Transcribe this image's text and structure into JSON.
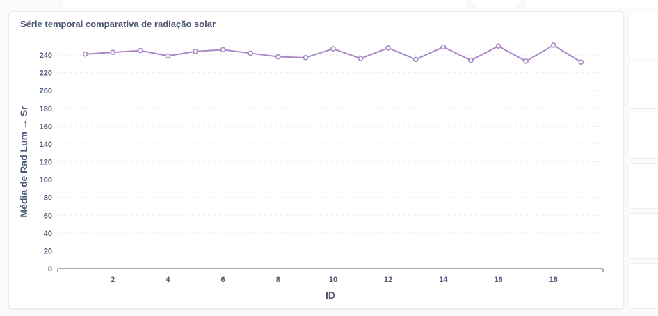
{
  "card": {
    "title": "Série temporal comparativa de radiação solar"
  },
  "colors": {
    "series": "#a989c5",
    "grid": "#eceff2",
    "axis": "#4c5773",
    "text": "#4c5773"
  },
  "chart_data": {
    "type": "line",
    "title": "Série temporal comparativa de radiação solar",
    "xlabel": "ID",
    "ylabel": "Média de Rad Lum → Sr",
    "x": [
      1,
      2,
      3,
      4,
      5,
      6,
      7,
      8,
      9,
      10,
      11,
      12,
      13,
      14,
      15,
      16,
      17,
      18,
      19
    ],
    "series": [
      {
        "values": [
          241,
          243,
          245,
          239,
          244,
          246,
          242,
          238,
          237,
          247,
          236,
          248,
          235,
          249,
          234,
          250,
          233,
          251,
          232
        ]
      }
    ],
    "xlim": [
      0,
      19.8
    ],
    "ylim": [
      0,
      240
    ],
    "xticks": [
      2,
      4,
      6,
      8,
      10,
      12,
      14,
      16,
      18
    ],
    "yticks": [
      0,
      20,
      40,
      60,
      80,
      100,
      120,
      140,
      160,
      180,
      200,
      220,
      240
    ],
    "grid": true,
    "legend": "none"
  }
}
